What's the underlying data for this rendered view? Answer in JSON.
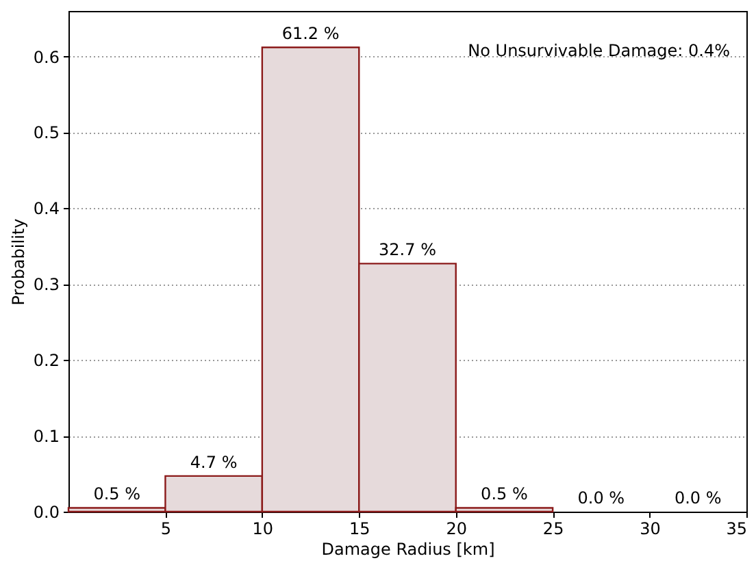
{
  "chart_data": {
    "type": "histogram",
    "xlabel": "Damage Radius [km]",
    "ylabel": "Probability",
    "bins": [
      0,
      5,
      10,
      15,
      20,
      25,
      30,
      35
    ],
    "values": [
      0.005,
      0.047,
      0.612,
      0.327,
      0.005,
      0.0,
      0.0
    ],
    "value_labels": [
      "0.5 %",
      "4.7 %",
      "61.2 %",
      "32.7 %",
      "0.5 %",
      "0.0 %",
      "0.0 %"
    ],
    "color": "#e6dadb",
    "xlim": [
      0,
      35
    ],
    "xticks": [
      5,
      10,
      15,
      20,
      25,
      30,
      35
    ],
    "ylim": [
      0,
      0.66
    ],
    "yticks": [
      {
        "value": 0,
        "label": "0.0"
      },
      0.1,
      0.2,
      0.3,
      0.4,
      0.5,
      0.6
    ],
    "grid": "y",
    "annotations": [
      "No Unsurvivable Damage: 0.4%"
    ]
  }
}
